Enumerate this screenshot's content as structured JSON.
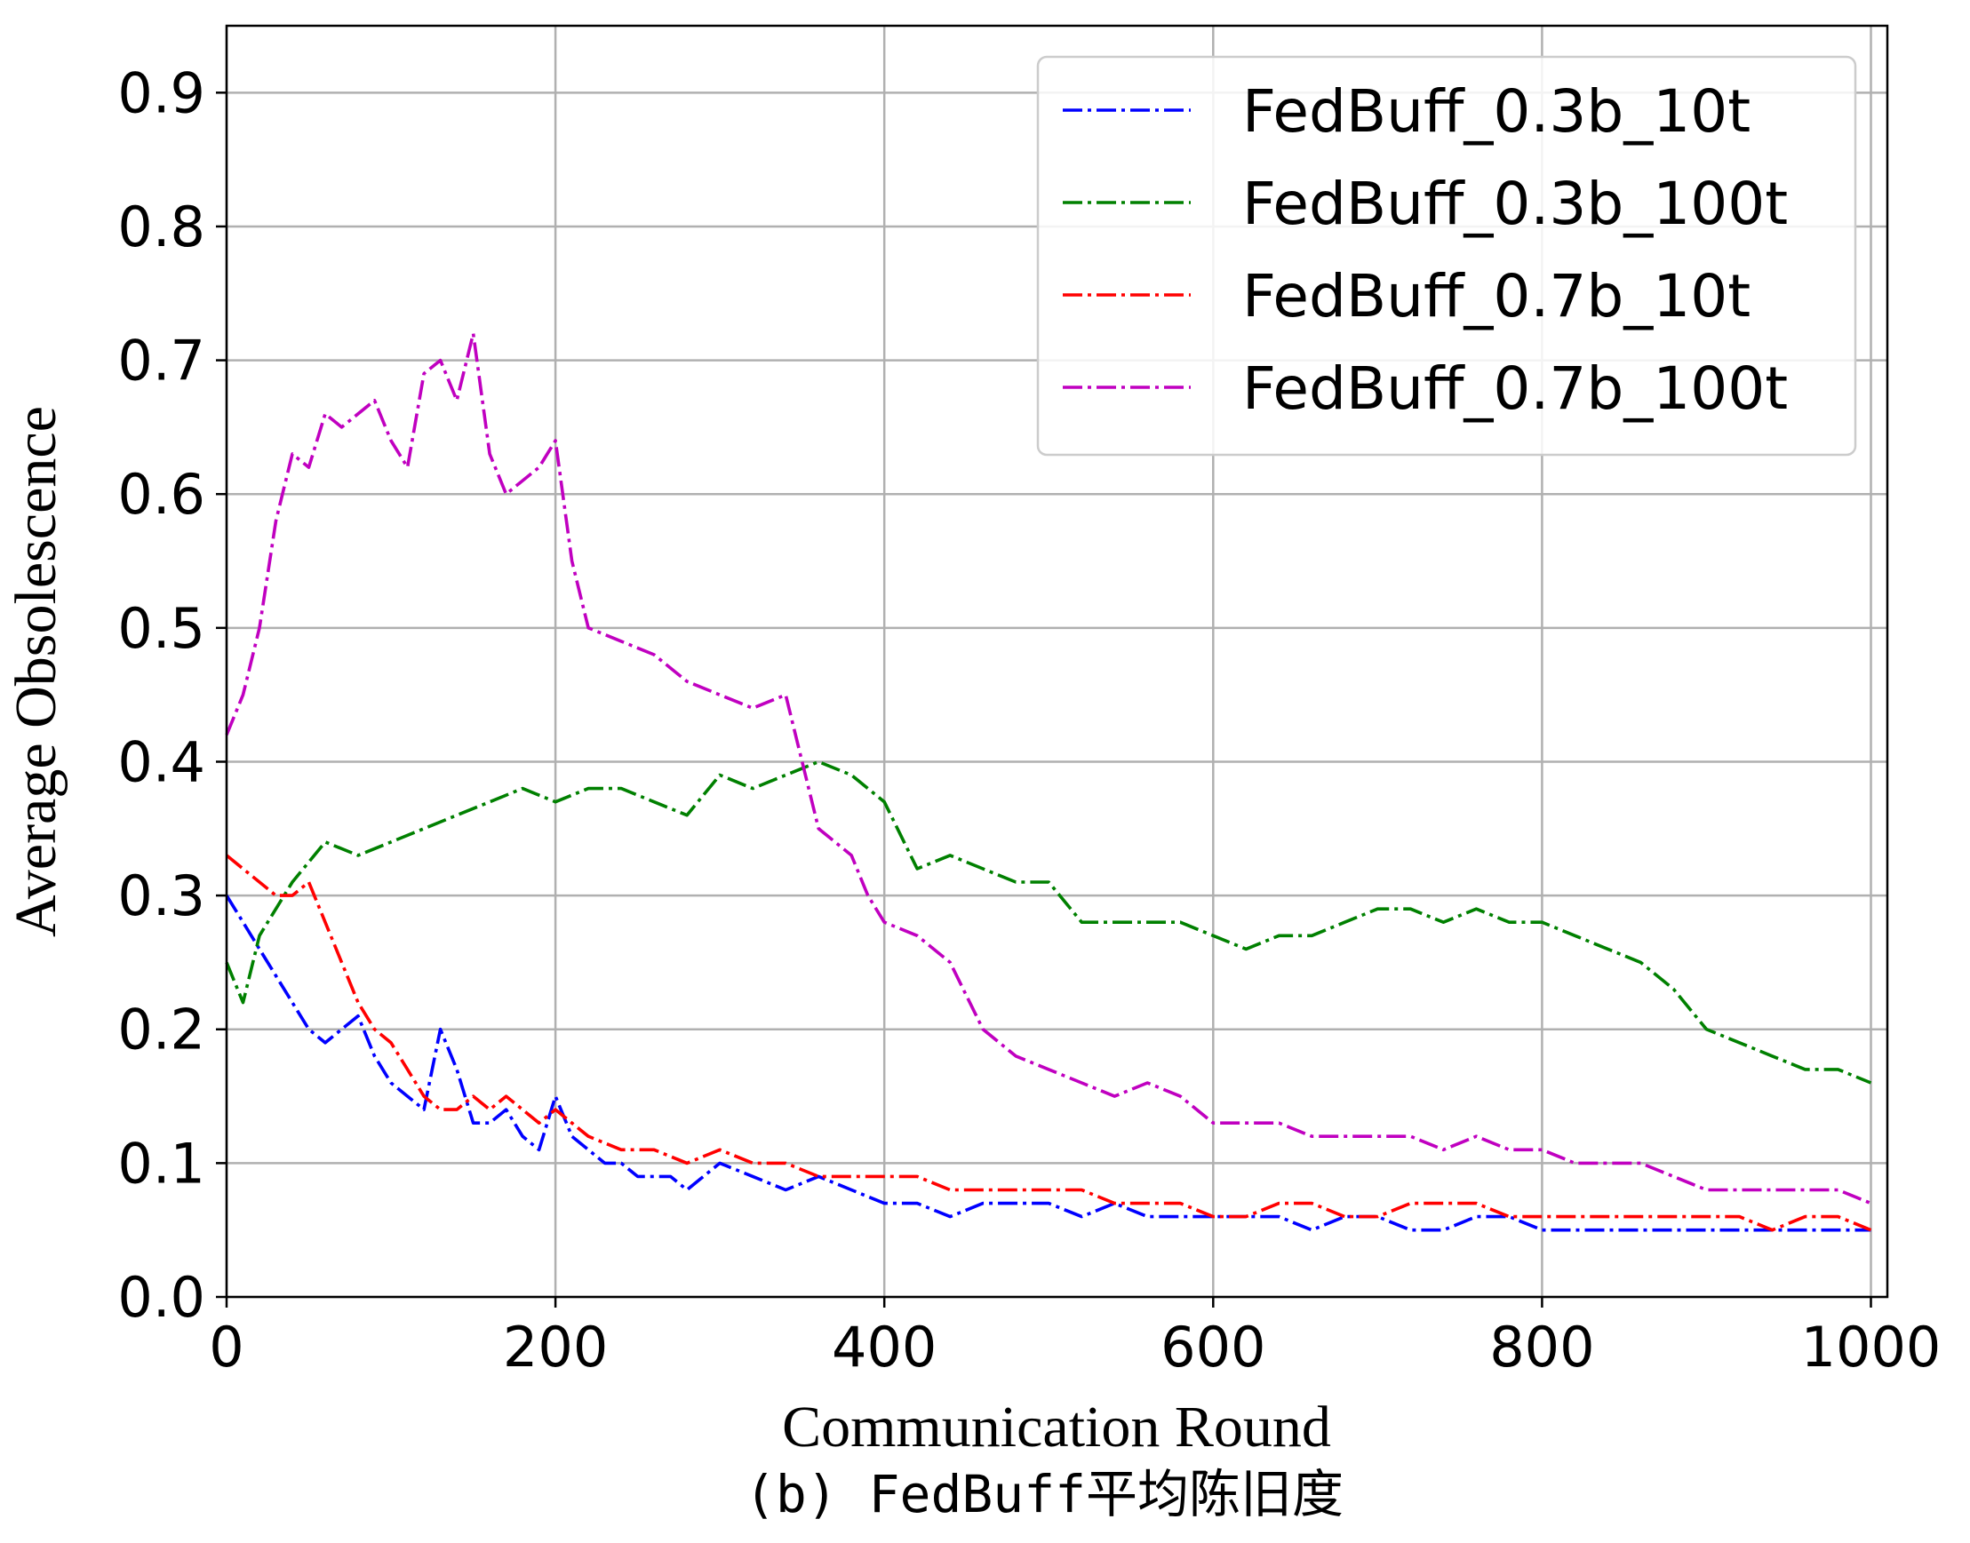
{
  "chart_data": {
    "type": "line",
    "xlabel": "Communication Round",
    "ylabel": "Average Obsolescence",
    "caption": "(b) FedBuff平均陈旧度",
    "xlim": [
      0,
      1010
    ],
    "ylim": [
      0,
      0.95
    ],
    "xticks": [
      "0",
      "200",
      "400",
      "600",
      "800",
      "1000"
    ],
    "yticks": [
      "0.0",
      "0.1",
      "0.2",
      "0.3",
      "0.4",
      "0.5",
      "0.6",
      "0.7",
      "0.8",
      "0.9"
    ],
    "grid": true,
    "legend_position": "top-right",
    "line_style": "dash-dot",
    "series": [
      {
        "name": "FedBuff_0.3b_10t",
        "color": "#0000ff",
        "x": [
          0,
          10,
          20,
          30,
          40,
          50,
          60,
          70,
          80,
          90,
          100,
          110,
          120,
          130,
          140,
          150,
          160,
          170,
          180,
          190,
          200,
          210,
          220,
          230,
          240,
          250,
          260,
          270,
          280,
          290,
          300,
          320,
          340,
          360,
          380,
          400,
          420,
          440,
          460,
          480,
          500,
          520,
          540,
          560,
          580,
          600,
          620,
          640,
          660,
          680,
          700,
          720,
          740,
          760,
          780,
          800,
          820,
          840,
          860,
          880,
          900,
          920,
          940,
          960,
          980,
          1000
        ],
        "y": [
          0.3,
          0.28,
          0.26,
          0.24,
          0.22,
          0.2,
          0.19,
          0.2,
          0.21,
          0.18,
          0.16,
          0.15,
          0.14,
          0.2,
          0.17,
          0.13,
          0.13,
          0.14,
          0.12,
          0.11,
          0.15,
          0.12,
          0.11,
          0.1,
          0.1,
          0.09,
          0.09,
          0.09,
          0.08,
          0.09,
          0.1,
          0.09,
          0.08,
          0.09,
          0.08,
          0.07,
          0.07,
          0.06,
          0.07,
          0.07,
          0.07,
          0.06,
          0.07,
          0.06,
          0.06,
          0.06,
          0.06,
          0.06,
          0.05,
          0.06,
          0.06,
          0.05,
          0.05,
          0.06,
          0.06,
          0.05,
          0.05,
          0.05,
          0.05,
          0.05,
          0.05,
          0.05,
          0.05,
          0.05,
          0.05,
          0.05
        ]
      },
      {
        "name": "FedBuff_0.3b_100t",
        "color": "#008000",
        "x": [
          0,
          10,
          20,
          40,
          60,
          80,
          100,
          120,
          140,
          160,
          180,
          200,
          220,
          240,
          260,
          280,
          300,
          320,
          340,
          360,
          380,
          400,
          420,
          440,
          460,
          480,
          500,
          520,
          540,
          560,
          580,
          600,
          620,
          640,
          660,
          680,
          700,
          720,
          740,
          760,
          780,
          800,
          820,
          840,
          860,
          880,
          900,
          920,
          940,
          960,
          980,
          1000
        ],
        "y": [
          0.25,
          0.22,
          0.27,
          0.31,
          0.34,
          0.33,
          0.34,
          0.35,
          0.36,
          0.37,
          0.38,
          0.37,
          0.38,
          0.38,
          0.37,
          0.36,
          0.39,
          0.38,
          0.39,
          0.4,
          0.39,
          0.37,
          0.32,
          0.33,
          0.32,
          0.31,
          0.31,
          0.28,
          0.28,
          0.28,
          0.28,
          0.27,
          0.26,
          0.27,
          0.27,
          0.28,
          0.29,
          0.29,
          0.28,
          0.29,
          0.28,
          0.28,
          0.27,
          0.26,
          0.25,
          0.23,
          0.2,
          0.19,
          0.18,
          0.17,
          0.17,
          0.16
        ]
      },
      {
        "name": "FedBuff_0.7b_10t",
        "color": "#ff0000",
        "x": [
          0,
          10,
          20,
          30,
          40,
          50,
          60,
          70,
          80,
          90,
          100,
          110,
          120,
          130,
          140,
          150,
          160,
          170,
          180,
          190,
          200,
          210,
          220,
          240,
          260,
          280,
          300,
          320,
          340,
          360,
          380,
          400,
          420,
          440,
          460,
          480,
          500,
          520,
          540,
          560,
          580,
          600,
          620,
          640,
          660,
          680,
          700,
          720,
          740,
          760,
          780,
          800,
          820,
          840,
          860,
          880,
          900,
          920,
          940,
          960,
          980,
          1000
        ],
        "y": [
          0.33,
          0.32,
          0.31,
          0.3,
          0.3,
          0.31,
          0.28,
          0.25,
          0.22,
          0.2,
          0.19,
          0.17,
          0.15,
          0.14,
          0.14,
          0.15,
          0.14,
          0.15,
          0.14,
          0.13,
          0.14,
          0.13,
          0.12,
          0.11,
          0.11,
          0.1,
          0.11,
          0.1,
          0.1,
          0.09,
          0.09,
          0.09,
          0.09,
          0.08,
          0.08,
          0.08,
          0.08,
          0.08,
          0.07,
          0.07,
          0.07,
          0.06,
          0.06,
          0.07,
          0.07,
          0.06,
          0.06,
          0.07,
          0.07,
          0.07,
          0.06,
          0.06,
          0.06,
          0.06,
          0.06,
          0.06,
          0.06,
          0.06,
          0.05,
          0.06,
          0.06,
          0.05
        ]
      },
      {
        "name": "FedBuff_0.7b_100t",
        "color": "#c000c0",
        "x": [
          0,
          10,
          20,
          30,
          40,
          50,
          60,
          70,
          80,
          90,
          100,
          110,
          120,
          130,
          140,
          150,
          160,
          170,
          180,
          190,
          200,
          210,
          220,
          240,
          260,
          280,
          300,
          320,
          340,
          360,
          380,
          390,
          400,
          420,
          440,
          460,
          480,
          500,
          520,
          540,
          560,
          580,
          600,
          620,
          640,
          660,
          680,
          700,
          720,
          740,
          760,
          780,
          800,
          820,
          840,
          860,
          880,
          900,
          920,
          940,
          960,
          980,
          1000
        ],
        "y": [
          0.42,
          0.45,
          0.5,
          0.58,
          0.63,
          0.62,
          0.66,
          0.65,
          0.66,
          0.67,
          0.64,
          0.62,
          0.69,
          0.7,
          0.67,
          0.72,
          0.63,
          0.6,
          0.61,
          0.62,
          0.64,
          0.55,
          0.5,
          0.49,
          0.48,
          0.46,
          0.45,
          0.44,
          0.45,
          0.35,
          0.33,
          0.3,
          0.28,
          0.27,
          0.25,
          0.2,
          0.18,
          0.17,
          0.16,
          0.15,
          0.16,
          0.15,
          0.13,
          0.13,
          0.13,
          0.12,
          0.12,
          0.12,
          0.12,
          0.11,
          0.12,
          0.11,
          0.11,
          0.1,
          0.1,
          0.1,
          0.09,
          0.08,
          0.08,
          0.08,
          0.08,
          0.08,
          0.07
        ]
      }
    ]
  }
}
